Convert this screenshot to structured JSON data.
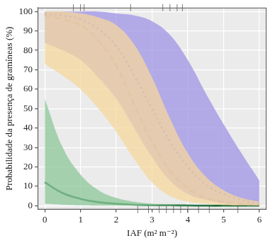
{
  "chart_data": {
    "type": "line",
    "x_label": "IAF (m² m⁻²)",
    "y_label": "Probabilidade da presença de gramíneas (%)",
    "x": [
      0,
      0.5,
      1,
      1.5,
      2,
      2.5,
      3,
      3.5,
      4,
      4.5,
      5,
      5.5,
      6
    ],
    "series": [
      {
        "color": "#1d6b35",
        "band_color": "#8cc79a",
        "line_style": "solid",
        "values": [
          12,
          6.5,
          3.5,
          1.8,
          1,
          0.5,
          0.3,
          0.2,
          0.1,
          0,
          0,
          0,
          0
        ],
        "lower": [
          1,
          0.5,
          0.2,
          0,
          0,
          0,
          0,
          0,
          0,
          0,
          0,
          0,
          0
        ],
        "upper": [
          55,
          30,
          16,
          8,
          4,
          2,
          1,
          0.5,
          0.2,
          0.1,
          0,
          0,
          0
        ]
      },
      {
        "color": "#d9803a",
        "band_color": "#f6d79c",
        "line_style": "dashed",
        "values": [
          98,
          96,
          93,
          85,
          72,
          52,
          33,
          18,
          9,
          4,
          2,
          1,
          0.5
        ],
        "lower": [
          73,
          67,
          60,
          50,
          38,
          24,
          12,
          5,
          2,
          1,
          0.3,
          0.1,
          0
        ],
        "upper": [
          100,
          100,
          99,
          97,
          93,
          83,
          66,
          45,
          27,
          15,
          8,
          4,
          2
        ]
      },
      {
        "color": "#2b3fb8",
        "band_color": "#9f93e6",
        "line_style": "dotted",
        "values": [
          99,
          98,
          96,
          91,
          82,
          67,
          50,
          33,
          20,
          11,
          6,
          3,
          1
        ],
        "lower": [
          84,
          80,
          75,
          66,
          55,
          40,
          25,
          13,
          6,
          3,
          1,
          0.5,
          0.2
        ],
        "upper": [
          100,
          100,
          100,
          100,
          99,
          98,
          95,
          88,
          75,
          58,
          42,
          27,
          13
        ]
      }
    ],
    "rug_top": [
      0.8,
      1.0,
      1.1,
      2.4,
      3.3,
      3.5,
      3.7,
      3.85
    ],
    "rug_bottom": [
      2.6,
      2.9,
      3.2,
      3.4,
      3.6,
      3.8,
      4.0,
      4.3,
      4.6,
      5.4
    ],
    "xlim": [
      -0.2,
      6.2
    ],
    "ylim": [
      -2,
      102
    ],
    "xticks": [
      0,
      1,
      2,
      3,
      4,
      5,
      6
    ],
    "yticks": [
      0,
      10,
      20,
      30,
      40,
      50,
      60,
      70,
      80,
      90,
      100
    ],
    "grid": true
  }
}
